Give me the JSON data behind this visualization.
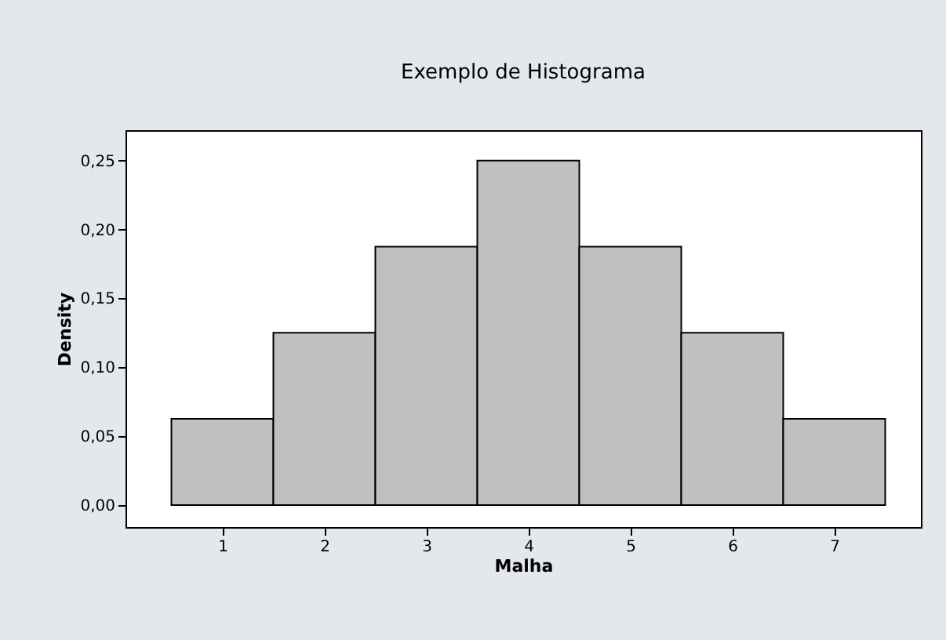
{
  "chart_data": {
    "type": "histogram",
    "title": "Exemplo de Histograma",
    "xlabel": "Malha",
    "ylabel": "Density",
    "bins": [
      0.5,
      1.5,
      2.5,
      3.5,
      4.5,
      5.5,
      6.5,
      7.5
    ],
    "values": [
      0.0625,
      0.125,
      0.1875,
      0.25,
      0.1875,
      0.125,
      0.0625
    ],
    "color": "#c0c0c0",
    "xlim": [
      0.05,
      7.85
    ],
    "xticks": [
      1,
      2,
      3,
      4,
      5,
      6,
      7
    ],
    "ylim": [
      -0.016,
      0.272
    ],
    "yticks": [
      {
        "value": 0,
        "label": "0,00"
      },
      {
        "value": 0.05,
        "label": "0,05"
      },
      {
        "value": 0.1,
        "label": "0,10"
      },
      {
        "value": 0.15,
        "label": "0,15"
      },
      {
        "value": 0.2,
        "label": "0,20"
      },
      {
        "value": 0.25,
        "label": "0,25"
      }
    ],
    "grid": false
  }
}
